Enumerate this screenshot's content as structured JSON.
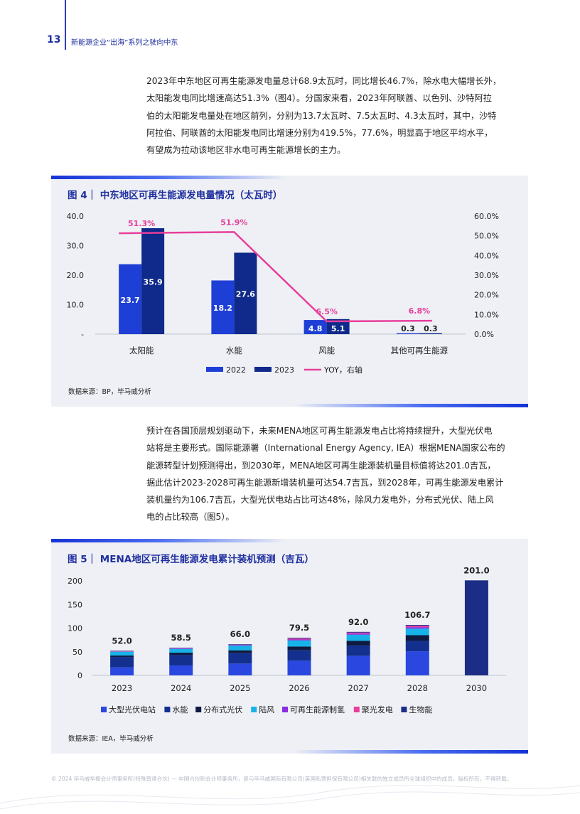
{
  "header": {
    "page_number": "13",
    "title": "新能源企业“出海”系列之驶向中东"
  },
  "paragraph1": {
    "lines": [
      "2023年中东地区可再生能源发电量总计68.9太瓦时，同比增长46.7%，除水电大幅增长外，",
      "太阳能发电同比增速高达51.3%（图4）。分国家来看，2023年阿联酋、以色列、沙特阿拉",
      "伯的太阳能发电量处在地区前列，分别为13.7太瓦时、7.5太瓦时、4.3太瓦时，其中，沙特",
      "阿拉伯、阿联酋的太阳能发电同比增速分别为419.5%，77.6%，明显高于地区平均水平，",
      "有望成为拉动该地区非水电可再生能源增长的主力。"
    ]
  },
  "figure4": {
    "title": "图 4｜ 中东地区可再生能源发电量情况（太瓦时）",
    "source": "数据来源：BP，毕马威分析"
  },
  "paragraph2": {
    "lines": [
      "预计在各国顶层规划驱动下，未来MENA地区可再生能源发电占比将持续提升，大型光伏电",
      "站将是主要形式。国际能源署（International Energy Agency, IEA）根据MENA国家公布的",
      "能源转型计划预测得出，到2030年，MENA地区可再生能源装机量目标值将达201.0吉瓦，",
      "据此估计2023-2028可再生能源新增装机量可达54.7吉瓦，到2028年，可再生能源发电累计",
      "装机量约为106.7吉瓦，大型光伏电站占比可达48%，除风力发电外，分布式光伏、陆上风",
      "电的占比较高（图5）。"
    ]
  },
  "figure5": {
    "title": "图 5｜ MENA地区可再生能源发电累计装机预测（吉瓦）",
    "source": "数据来源：IEA，毕马威分析"
  },
  "footer": {
    "text": "© 2024 毕马威华振会计师事务所(特殊普通合伙) — 中国合伙制会计师事务所，是与毕马威国际有限公司(英国私营担保有限公司)相关联的独立成员所全球组织中的成员。版权所有，不得转载。"
  },
  "colors": {
    "brand": "#1f2fa0",
    "c2022": "#1e3fd6",
    "c2023": "#0f2a8a",
    "yoy": "#e83e9b"
  },
  "chart_data": [
    {
      "type": "bar",
      "categories": [
        "太阳能",
        "水能",
        "风能",
        "其他可再生能源"
      ],
      "series": [
        {
          "name": "2022",
          "values": [
            23.7,
            18.2,
            4.8,
            0.3
          ],
          "color": "#1e3fd6"
        },
        {
          "name": "2023",
          "values": [
            35.9,
            27.6,
            5.1,
            0.3
          ],
          "color": "#0f2a8a"
        },
        {
          "name": "YOY，右轴",
          "type": "line",
          "axis": "right",
          "values": [
            51.3,
            51.9,
            6.5,
            6.8
          ],
          "labels": [
            "51.3%",
            "51.9%",
            "6.5%",
            "6.8%"
          ],
          "color": "#e83e9b"
        }
      ],
      "ylim": [
        0,
        40
      ],
      "yticks": [
        "-",
        "10.0",
        "20.0",
        "30.0",
        "40.0"
      ],
      "y2lim": [
        0,
        60
      ],
      "y2ticks": [
        "0.0%",
        "10.0%",
        "20.0%",
        "30.0%",
        "40.0%",
        "50.0%",
        "60.0%"
      ],
      "legend": "bottom"
    },
    {
      "type": "bar",
      "stacked": true,
      "categories": [
        "2023",
        "2024",
        "2025",
        "2026",
        "2027",
        "2028",
        "2030"
      ],
      "totals": [
        52.0,
        58.5,
        66.0,
        79.5,
        92.0,
        106.7,
        201.0
      ],
      "total_labels": [
        "52.0",
        "58.5",
        "66.0",
        "79.5",
        "92.0",
        "106.7",
        "201.0"
      ],
      "series": [
        {
          "name": "大型光伏电站",
          "color": "#2a48e0",
          "values": [
            17,
            21,
            25,
            31,
            41,
            51,
            0
          ]
        },
        {
          "name": "水能",
          "color": "#13308f",
          "values": [
            22,
            22,
            22,
            22,
            22,
            22,
            0
          ]
        },
        {
          "name": "分布式光伏",
          "color": "#0e1a40",
          "values": [
            3,
            5,
            6,
            8,
            10,
            12,
            0
          ]
        },
        {
          "name": "陆风",
          "color": "#17b2e8",
          "values": [
            8,
            8,
            10,
            13,
            13,
            14,
            0
          ]
        },
        {
          "name": "可再生能源制氢",
          "color": "#8b2be2",
          "values": [
            0.5,
            1,
            1.5,
            2,
            2.5,
            3,
            0
          ]
        },
        {
          "name": "聚光发电",
          "color": "#e83e9b",
          "values": [
            0.5,
            0.5,
            0.5,
            2,
            2,
            3,
            0
          ]
        },
        {
          "name": "生物能",
          "color": "#1c2d86",
          "values": [
            1,
            1,
            1,
            1.5,
            1.5,
            1.7,
            201.0
          ]
        }
      ],
      "ylim": [
        0,
        200
      ],
      "yticks": [
        "0",
        "50",
        "100",
        "150",
        "200"
      ],
      "legend": "bottom"
    }
  ]
}
